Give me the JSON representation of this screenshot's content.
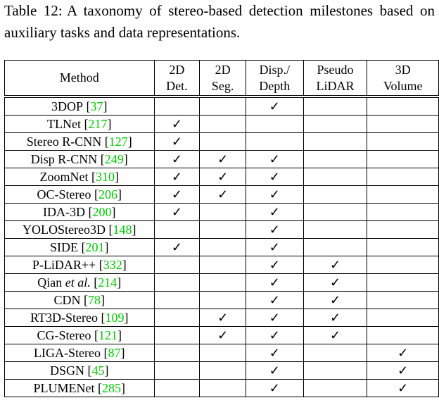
{
  "caption": {
    "label": "Table 12:",
    "text": "A taxonomy of stereo-based detection milestones based on auxiliary tasks and data representations."
  },
  "table": {
    "columns": [
      [
        "Method"
      ],
      [
        "2D",
        "Det."
      ],
      [
        "2D",
        "Seg."
      ],
      [
        "Disp./",
        "Depth"
      ],
      [
        "Pseudo",
        "LiDAR"
      ],
      [
        "3D",
        "Volume"
      ]
    ],
    "rows": [
      {
        "method": "3DOP",
        "ref": [
          "[",
          "37",
          "]"
        ],
        "cells": [
          null,
          null,
          "✓",
          null,
          null
        ]
      },
      {
        "method": "TLNet",
        "ref": [
          "[",
          "217",
          "]"
        ],
        "cells": [
          "✓",
          null,
          null,
          null,
          null
        ]
      },
      {
        "method": "Stereo R-CNN",
        "ref": [
          "[",
          "127",
          "]"
        ],
        "cells": [
          "✓",
          null,
          null,
          null,
          null
        ]
      },
      {
        "method": "Disp R-CNN",
        "ref": [
          "[",
          "249",
          "]"
        ],
        "cells": [
          "✓",
          "✓",
          "✓",
          null,
          null
        ]
      },
      {
        "method": "ZoomNet",
        "ref": [
          "[",
          "310",
          "]"
        ],
        "cells": [
          "✓",
          "✓",
          "✓",
          null,
          null
        ]
      },
      {
        "method": "OC-Stereo",
        "ref": [
          "[",
          "206",
          "]"
        ],
        "cells": [
          "✓",
          "✓",
          "✓",
          null,
          null
        ]
      },
      {
        "method": "IDA-3D",
        "ref": [
          "[",
          "200",
          "]"
        ],
        "cells": [
          "✓",
          null,
          "✓",
          null,
          null
        ]
      },
      {
        "method": "YOLOStereo3D",
        "ref": [
          "[",
          "148",
          "]"
        ],
        "cells": [
          null,
          null,
          "✓",
          null,
          null
        ]
      },
      {
        "method": "SIDE",
        "ref": [
          "[",
          "201",
          "]"
        ],
        "cells": [
          "✓",
          null,
          "✓",
          null,
          null
        ]
      },
      {
        "method": "P-LiDAR++",
        "ref": [
          "[",
          "332",
          "]"
        ],
        "cells": [
          null,
          null,
          "✓",
          "✓",
          null
        ]
      },
      {
        "method": "Qian",
        "method_italic": "et al.",
        "ref": [
          "[",
          "214",
          "]"
        ],
        "cells": [
          null,
          null,
          "✓",
          "✓",
          null
        ]
      },
      {
        "method": "CDN",
        "ref": [
          "[",
          "78",
          "]"
        ],
        "cells": [
          null,
          null,
          "✓",
          "✓",
          null
        ]
      },
      {
        "method": "RT3D-Stereo",
        "ref": [
          "[",
          "109",
          "]"
        ],
        "cells": [
          null,
          "✓",
          "✓",
          "✓",
          null
        ]
      },
      {
        "method": "CG-Stereo",
        "ref": [
          "[",
          "121",
          "]"
        ],
        "cells": [
          null,
          "✓",
          "✓",
          "✓",
          null
        ]
      },
      {
        "method": "LIGA-Stereo",
        "ref": [
          "[",
          "87",
          "]"
        ],
        "cells": [
          null,
          null,
          "✓",
          null,
          "✓"
        ]
      },
      {
        "method": "DSGN",
        "ref": [
          "[",
          "45",
          "]"
        ],
        "cells": [
          null,
          null,
          "✓",
          null,
          "✓"
        ]
      },
      {
        "method": "PLUMENet",
        "ref": [
          "[",
          "285",
          "]"
        ],
        "cells": [
          null,
          null,
          "✓",
          null,
          "✓"
        ]
      }
    ]
  }
}
